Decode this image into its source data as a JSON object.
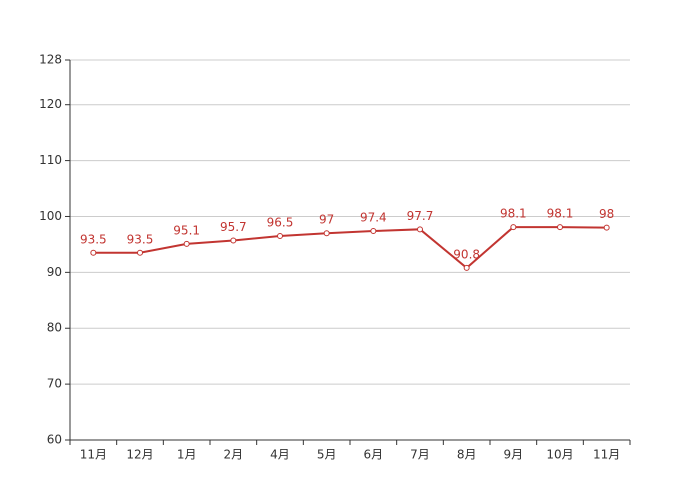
{
  "chart_data": {
    "type": "line",
    "categories": [
      "11月",
      "12月",
      "1月",
      "2月",
      "4月",
      "5月",
      "6月",
      "7月",
      "8月",
      "9月",
      "10月",
      "11月"
    ],
    "series": [
      {
        "color": "#c23531",
        "values": [
          93.5,
          93.5,
          95.1,
          95.7,
          96.5,
          97,
          97.4,
          97.7,
          90.8,
          98.1,
          98.1,
          98
        ]
      }
    ],
    "ylim": [
      60,
      128
    ],
    "yticks": [
      60,
      70,
      80,
      90,
      100,
      110,
      120,
      128
    ],
    "grid": true
  }
}
